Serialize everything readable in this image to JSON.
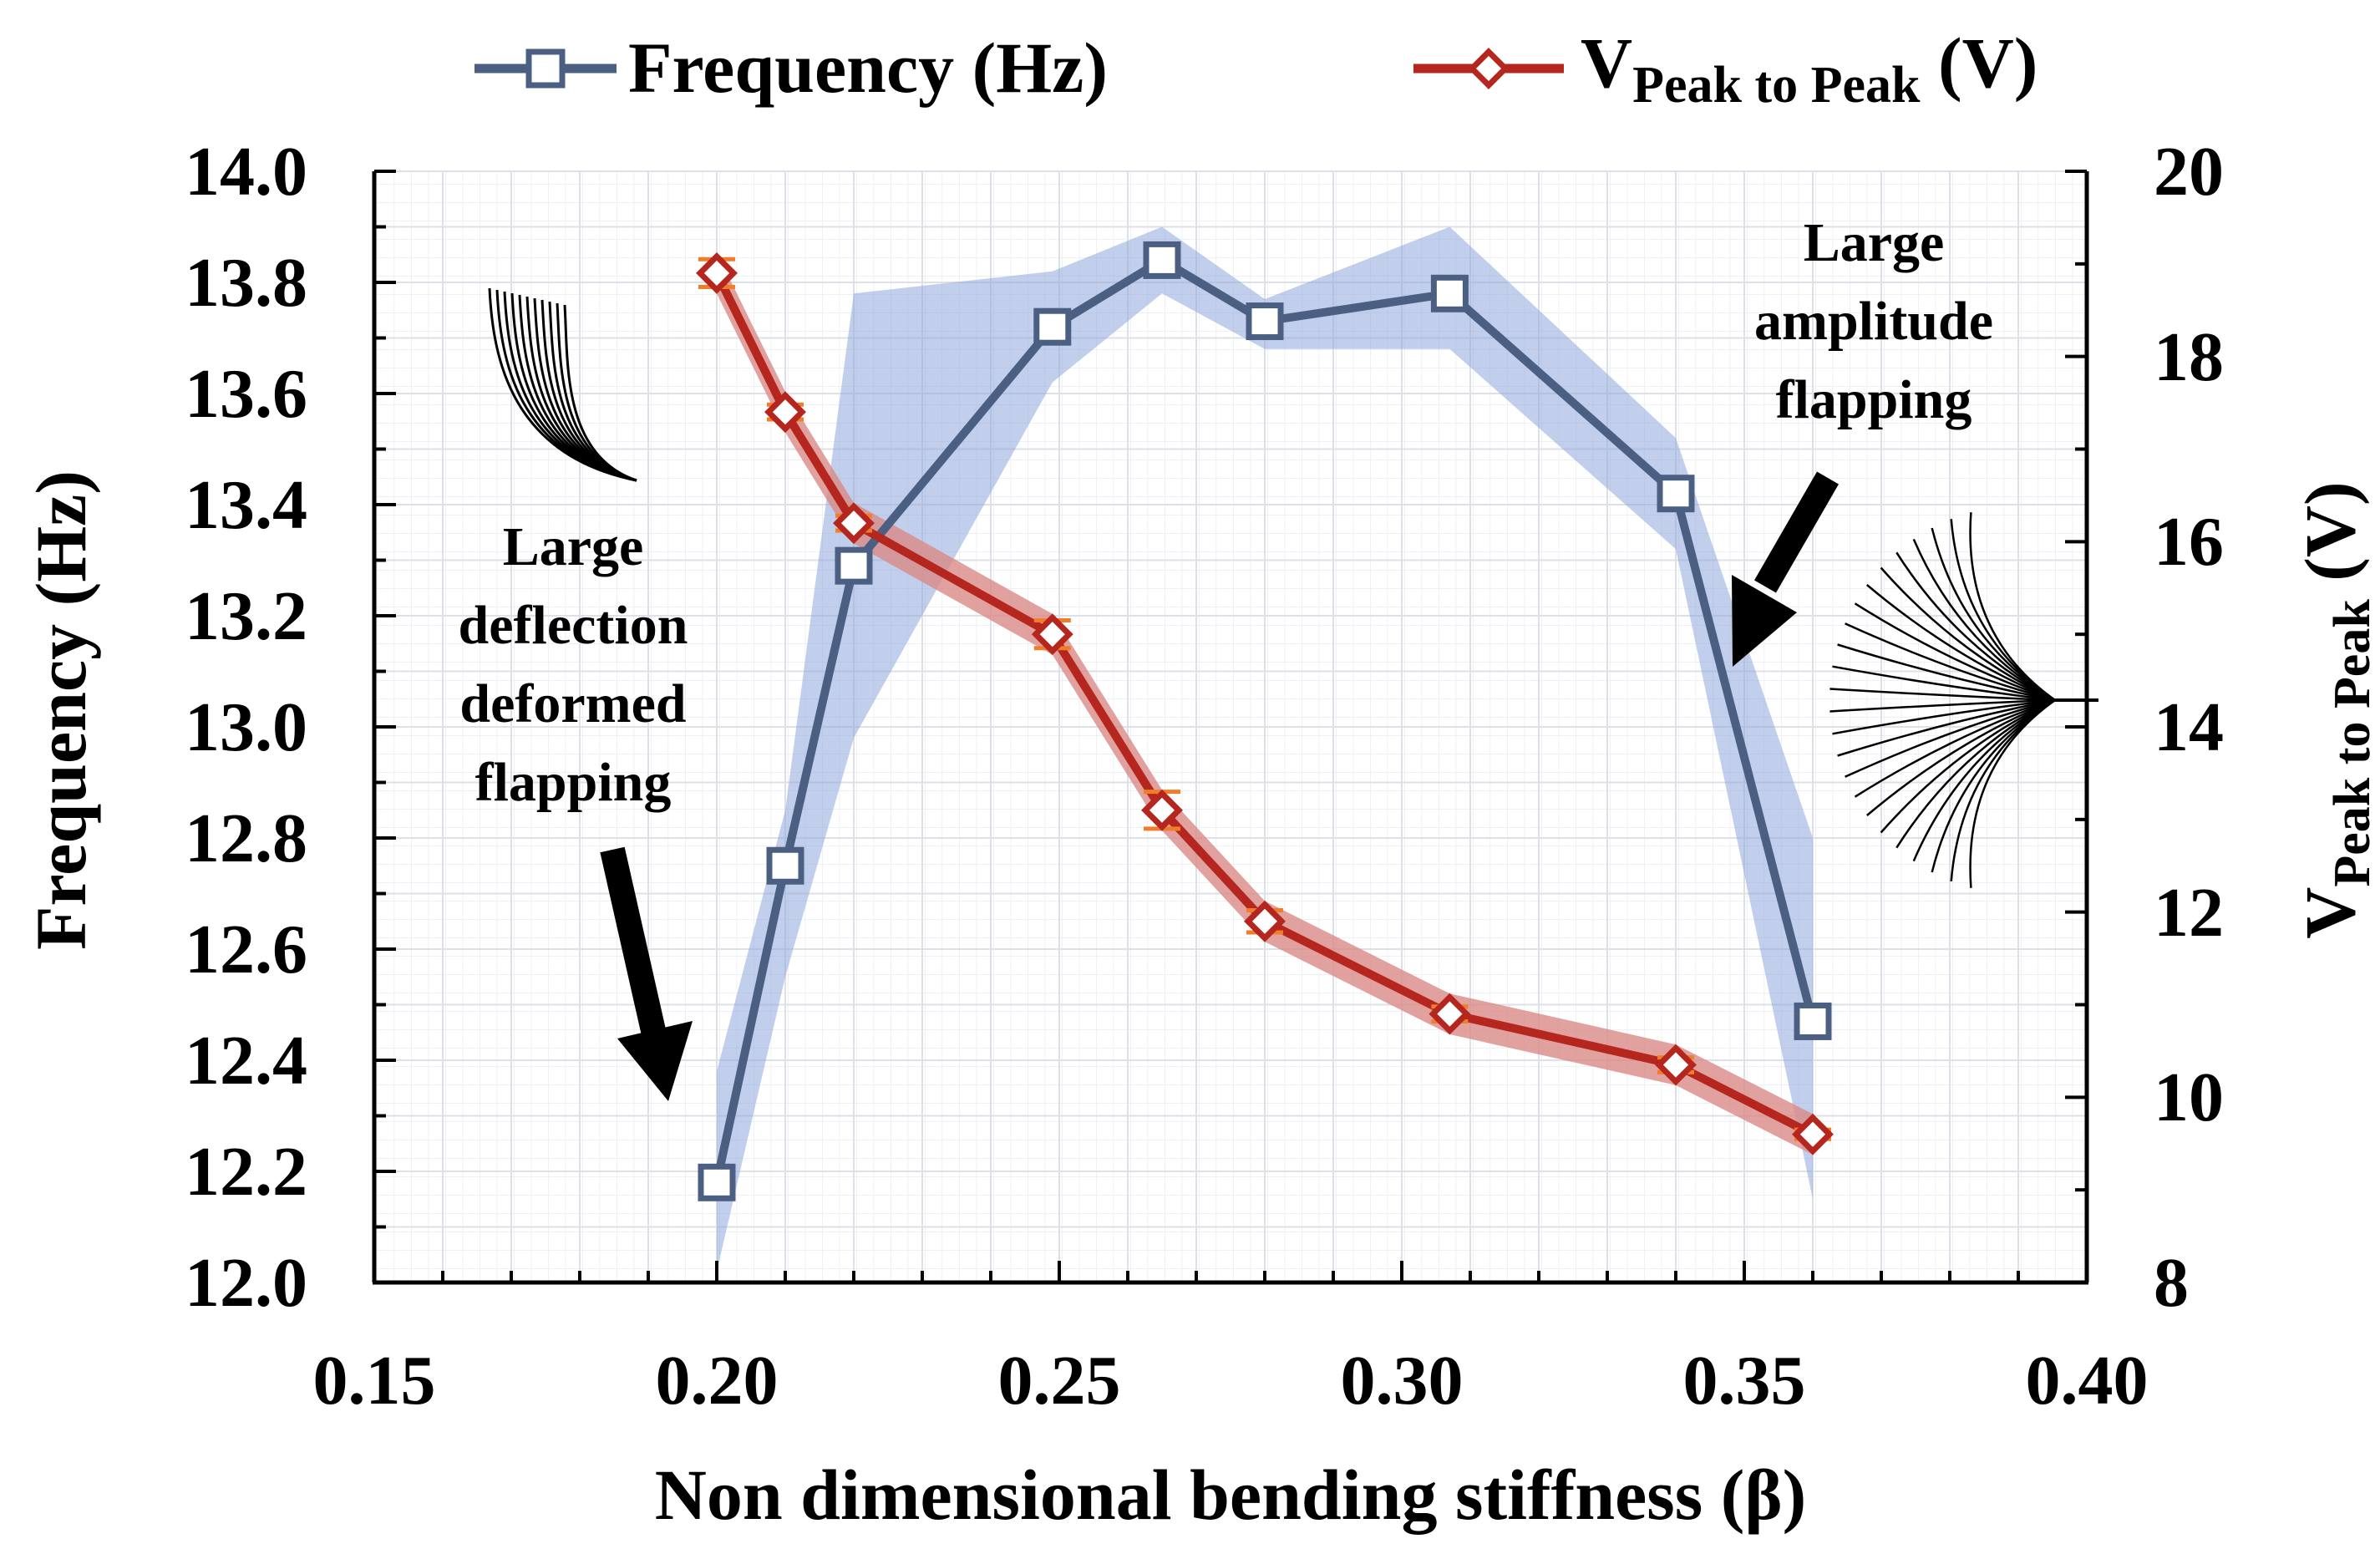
{
  "chart_data": {
    "type": "line",
    "title": "",
    "xlabel": "Non dimensional bending stiffness (β)",
    "ylabel_left": "Frequency (Hz)",
    "ylabel_right": {
      "main": "V",
      "sub": "Peak to Peak",
      "unit": " (V)"
    },
    "xlim": [
      0.15,
      0.4
    ],
    "ylim_left": [
      12.0,
      14.0
    ],
    "ylim_right": [
      8,
      20
    ],
    "x_ticks": [
      "0.15",
      "0.20",
      "0.25",
      "0.30",
      "0.35",
      "0.40"
    ],
    "y_left_ticks": [
      "12.0",
      "12.2",
      "12.4",
      "12.6",
      "12.8",
      "13.0",
      "13.2",
      "13.4",
      "13.6",
      "13.8",
      "14.0"
    ],
    "y_right_ticks": [
      "8",
      "10",
      "12",
      "14",
      "16",
      "18",
      "20"
    ],
    "grid": true,
    "legend_position": "top",
    "series": [
      {
        "name": "Frequency (Hz)",
        "axis": "left",
        "color": "#4a5f82",
        "band_color": "#8fa8dc",
        "marker": "square",
        "x": [
          0.2,
          0.21,
          0.22,
          0.249,
          0.265,
          0.28,
          0.307,
          0.34,
          0.36
        ],
        "y": [
          12.18,
          12.75,
          13.29,
          13.72,
          13.84,
          13.73,
          13.78,
          13.42,
          12.47
        ],
        "band_upper": [
          12.38,
          12.85,
          13.78,
          13.82,
          13.9,
          13.77,
          13.9,
          13.52,
          12.8
        ],
        "band_lower": [
          12.02,
          12.55,
          12.98,
          13.62,
          13.78,
          13.68,
          13.68,
          13.32,
          12.15
        ]
      },
      {
        "name": "V Peak to Peak (V)",
        "legend": {
          "main": "V",
          "sub": "Peak to Peak",
          "unit": " (V)"
        },
        "axis": "right",
        "color": "#b5261e",
        "band_color": "#d98a86",
        "error_color": "#f07d2a",
        "marker": "diamond",
        "x": [
          0.2,
          0.21,
          0.22,
          0.249,
          0.265,
          0.28,
          0.307,
          0.34,
          0.36
        ],
        "y": [
          18.9,
          17.4,
          16.2,
          15.0,
          13.1,
          11.9,
          10.9,
          10.35,
          9.6
        ],
        "error": [
          0.15,
          0.08,
          0.08,
          0.15,
          0.2,
          0.12,
          0.08,
          0.08,
          0.05
        ]
      }
    ],
    "annotations": [
      {
        "lines": [
          "Large",
          "deflection",
          "deformed",
          "flapping"
        ]
      },
      {
        "lines": [
          "Large",
          "amplitude",
          "flapping"
        ]
      }
    ]
  }
}
